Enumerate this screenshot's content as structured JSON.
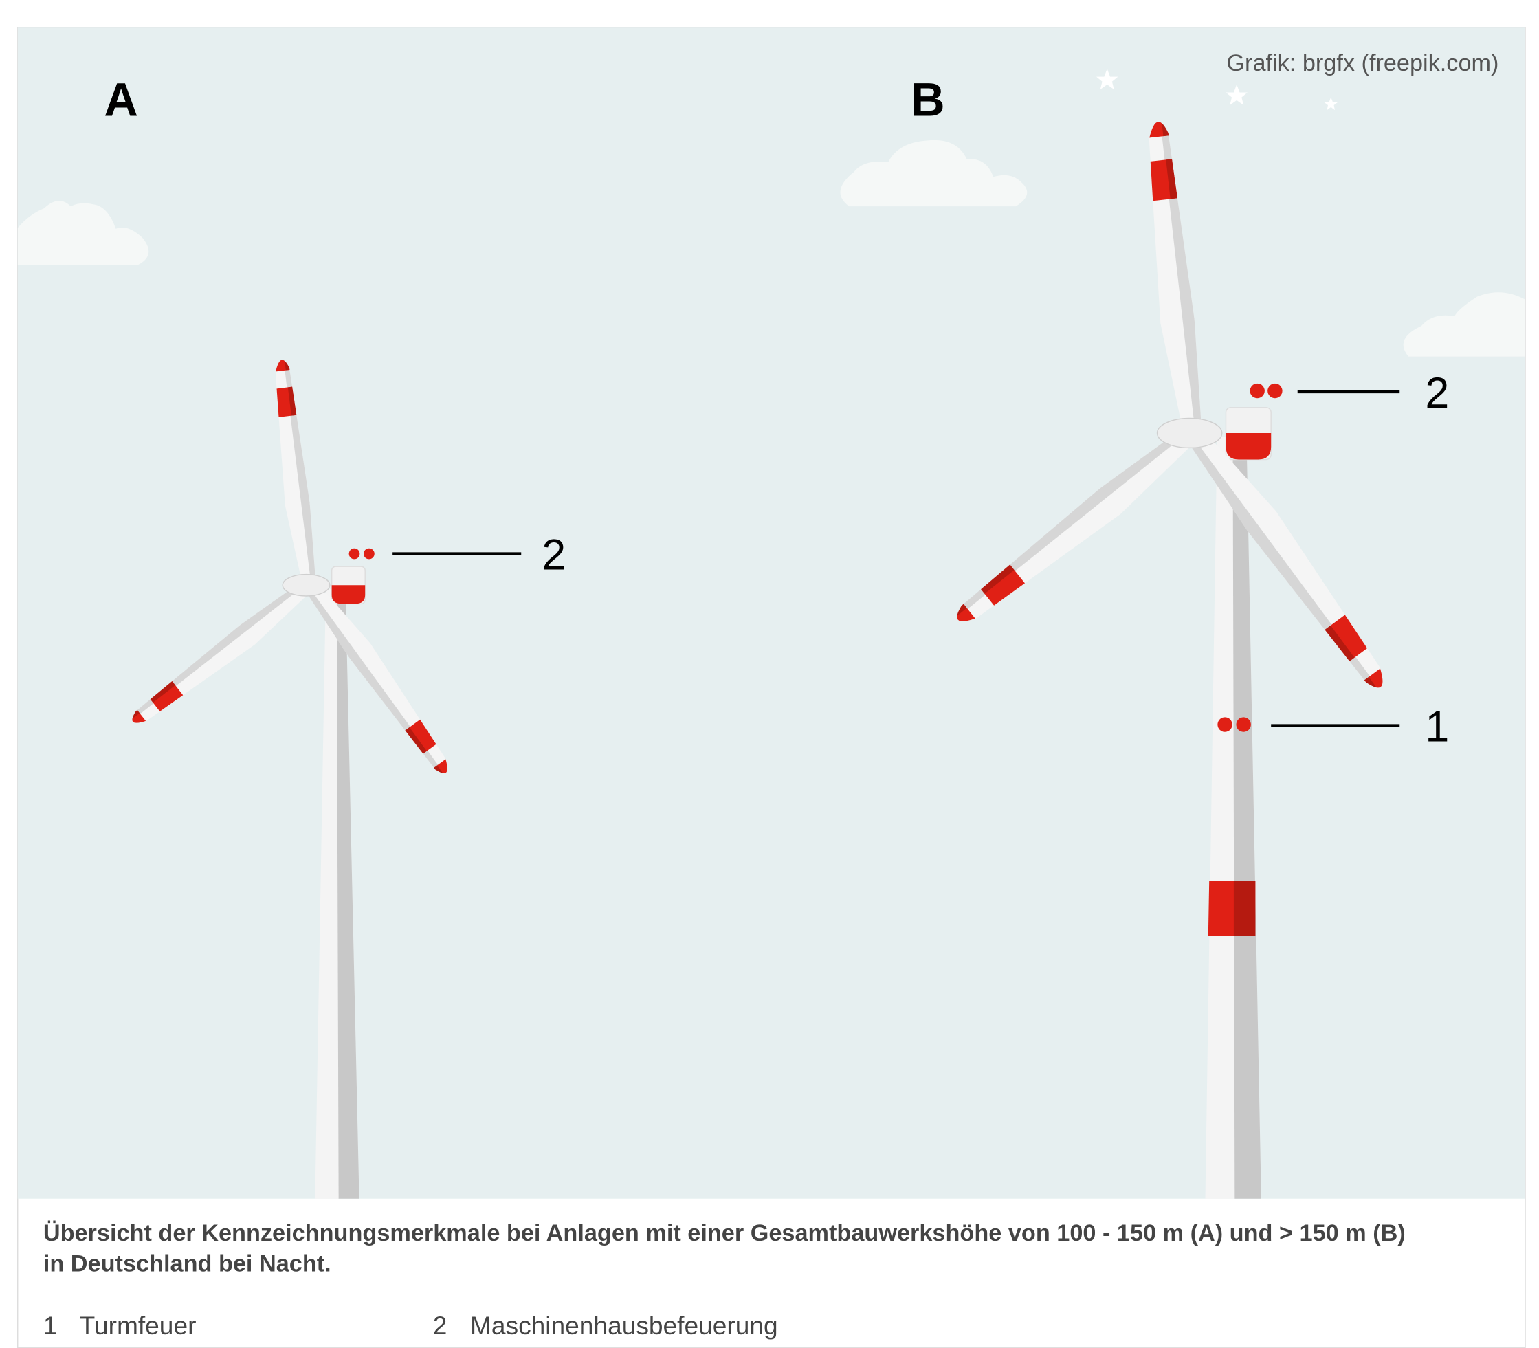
{
  "credit": "Grafik: brgfx (freepik.com)",
  "panels": [
    {
      "label": "A"
    },
    {
      "label": "B"
    }
  ],
  "callouts": [
    {
      "number": "2"
    },
    {
      "number": "2"
    },
    {
      "number": "1"
    }
  ],
  "caption": [
    "Übersicht der Kennzeichnungsmerkmale bei Anlagen mit einer Gesamtbauwerkshöhe von 100 - 150 m (A) und > 150 m (B)",
    "in Deutschland bei Nacht."
  ],
  "legend": [
    {
      "number": "1",
      "label": "Turmfeuer"
    },
    {
      "number": "2",
      "label": "Maschinenhausbefeuerung"
    }
  ]
}
